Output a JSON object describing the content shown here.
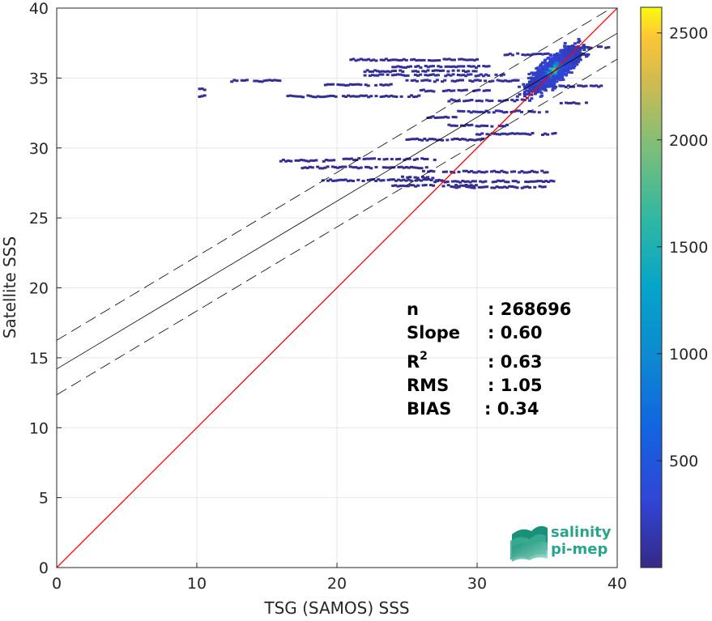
{
  "chart_data": {
    "type": "heatmap",
    "xlabel": "TSG (SAMOS) SSS",
    "ylabel": "Satellite SSS",
    "xlim": [
      0,
      40
    ],
    "ylim": [
      0,
      40
    ],
    "xticks": [
      0,
      10,
      20,
      30,
      40
    ],
    "yticks": [
      0,
      5,
      10,
      15,
      20,
      25,
      30,
      35,
      40
    ],
    "grid": true,
    "colorbar": {
      "min": 0,
      "max": 2620,
      "ticks": [
        500,
        1000,
        1500,
        2000,
        2500
      ],
      "colormap": "parula"
    },
    "lines": [
      {
        "style": "red-solid",
        "color": "#ff0000",
        "intercept": 0,
        "slope": 1
      },
      {
        "style": "black-solid",
        "color": "#000000",
        "intercept": 14.2,
        "slope": 0.6
      },
      {
        "style": "black-dashed",
        "color": "#000000",
        "intercept": 16.25,
        "slope": 0.6
      },
      {
        "style": "black-dashed",
        "color": "#000000",
        "intercept": 12.35,
        "slope": 0.6
      }
    ],
    "stats": [
      {
        "label": "n",
        "sup": "",
        "value": ": 268696"
      },
      {
        "label": "Slope",
        "sup": "",
        "value": ": 0.60"
      },
      {
        "label": "R",
        "sup": "2",
        "value": ": 0.63"
      },
      {
        "label": "RMS",
        "sup": "",
        "value": ": 1.05"
      },
      {
        "label": "BIAS",
        "sup": "",
        "value": ": 0.34"
      }
    ],
    "density": {
      "core": {
        "x": 35.5,
        "y": 35.6,
        "peak": 2620
      },
      "streaks": [
        {
          "x0": 12.5,
          "x1": 16.0,
          "y": 34.8,
          "count": 40
        },
        {
          "x0": 10.2,
          "x1": 10.6,
          "y": 33.7,
          "count": 30
        },
        {
          "x0": 10.2,
          "x1": 10.6,
          "y": 34.2,
          "count": 30
        },
        {
          "x0": 19.0,
          "x1": 24.0,
          "y": 34.5,
          "count": 60
        },
        {
          "x0": 16.5,
          "x1": 26.0,
          "y": 33.7,
          "count": 60
        },
        {
          "x0": 24.0,
          "x1": 31.0,
          "y": 35.8,
          "count": 80
        },
        {
          "x0": 22.0,
          "x1": 32.0,
          "y": 35.2,
          "count": 90
        },
        {
          "x0": 25.0,
          "x1": 33.0,
          "y": 34.8,
          "count": 90
        },
        {
          "x0": 26.0,
          "x1": 31.0,
          "y": 34.1,
          "count": 80
        },
        {
          "x0": 28.0,
          "x1": 34.0,
          "y": 33.4,
          "count": 100
        },
        {
          "x0": 28.5,
          "x1": 35.0,
          "y": 32.6,
          "count": 100
        },
        {
          "x0": 28.0,
          "x1": 32.5,
          "y": 31.6,
          "count": 60
        },
        {
          "x0": 26.5,
          "x1": 28.5,
          "y": 32.2,
          "count": 40
        },
        {
          "x0": 21.0,
          "x1": 30.0,
          "y": 36.3,
          "count": 50
        },
        {
          "x0": 32.0,
          "x1": 38.0,
          "y": 36.7,
          "count": 120
        },
        {
          "x0": 30.0,
          "x1": 36.0,
          "y": 31.0,
          "count": 60
        },
        {
          "x0": 16.0,
          "x1": 20.0,
          "y": 29.1,
          "count": 60
        },
        {
          "x0": 20.5,
          "x1": 27.0,
          "y": 29.2,
          "count": 60
        },
        {
          "x0": 17.0,
          "x1": 21.0,
          "y": 28.6,
          "count": 40
        },
        {
          "x0": 21.0,
          "x1": 26.5,
          "y": 28.6,
          "count": 40
        },
        {
          "x0": 26.0,
          "x1": 35.0,
          "y": 28.3,
          "count": 60
        },
        {
          "x0": 19.0,
          "x1": 27.5,
          "y": 27.7,
          "count": 60
        },
        {
          "x0": 24.0,
          "x1": 30.0,
          "y": 27.3,
          "count": 40
        },
        {
          "x0": 27.0,
          "x1": 35.5,
          "y": 27.6,
          "count": 50
        },
        {
          "x0": 28.0,
          "x1": 35.0,
          "y": 27.2,
          "count": 40
        },
        {
          "x0": 24.5,
          "x1": 27.0,
          "y": 27.9,
          "count": 30
        },
        {
          "x0": 22.0,
          "x1": 30.0,
          "y": 35.5,
          "count": 60
        },
        {
          "x0": 34.0,
          "x1": 39.0,
          "y": 34.4,
          "count": 70
        },
        {
          "x0": 36.0,
          "x1": 38.0,
          "y": 33.2,
          "count": 50
        },
        {
          "x0": 36.5,
          "x1": 39.5,
          "y": 37.2,
          "count": 60
        },
        {
          "x0": 25.0,
          "x1": 30.5,
          "y": 30.6,
          "count": 40
        }
      ]
    }
  },
  "logo": {
    "line1": "salinity",
    "line2": "pi-mep"
  }
}
